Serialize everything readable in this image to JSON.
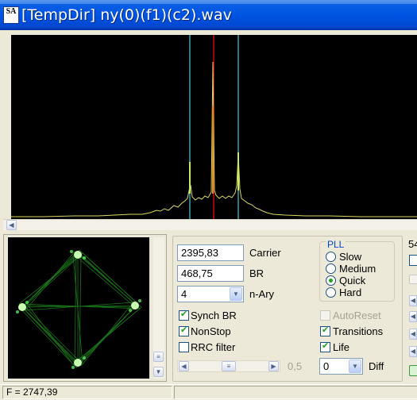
{
  "window": {
    "title": "[TempDir]  ny(0)(f1)(c2).wav",
    "app_icon_text": "SA"
  },
  "spectrum": {
    "cursor_colors": {
      "center": "#d40000",
      "sideband": "#4fc8d8",
      "trace": "#d8d860"
    }
  },
  "demod": {
    "carrier_value": "2395,83",
    "carrier_label": "Carrier",
    "br_value": "468,75",
    "br_label": "BR",
    "nary_value": "4",
    "nary_label": "n-Ary",
    "synch_br_label": "Synch BR",
    "nonstop_label": "NonStop",
    "rrc_label": "RRC filter",
    "slider_value": "0,5",
    "autoreset_label": "AutoReset",
    "transitions_label": "Transitions",
    "life_label": "Life",
    "diff_value": "0",
    "diff_label": "Diff"
  },
  "pll": {
    "legend": "PLL",
    "options": [
      "Slow",
      "Medium",
      "Quick",
      "Hard"
    ],
    "selected": "Quick"
  },
  "right_edge": {
    "partial_text": "54"
  },
  "status": {
    "frequency": "F = 2747,39"
  }
}
